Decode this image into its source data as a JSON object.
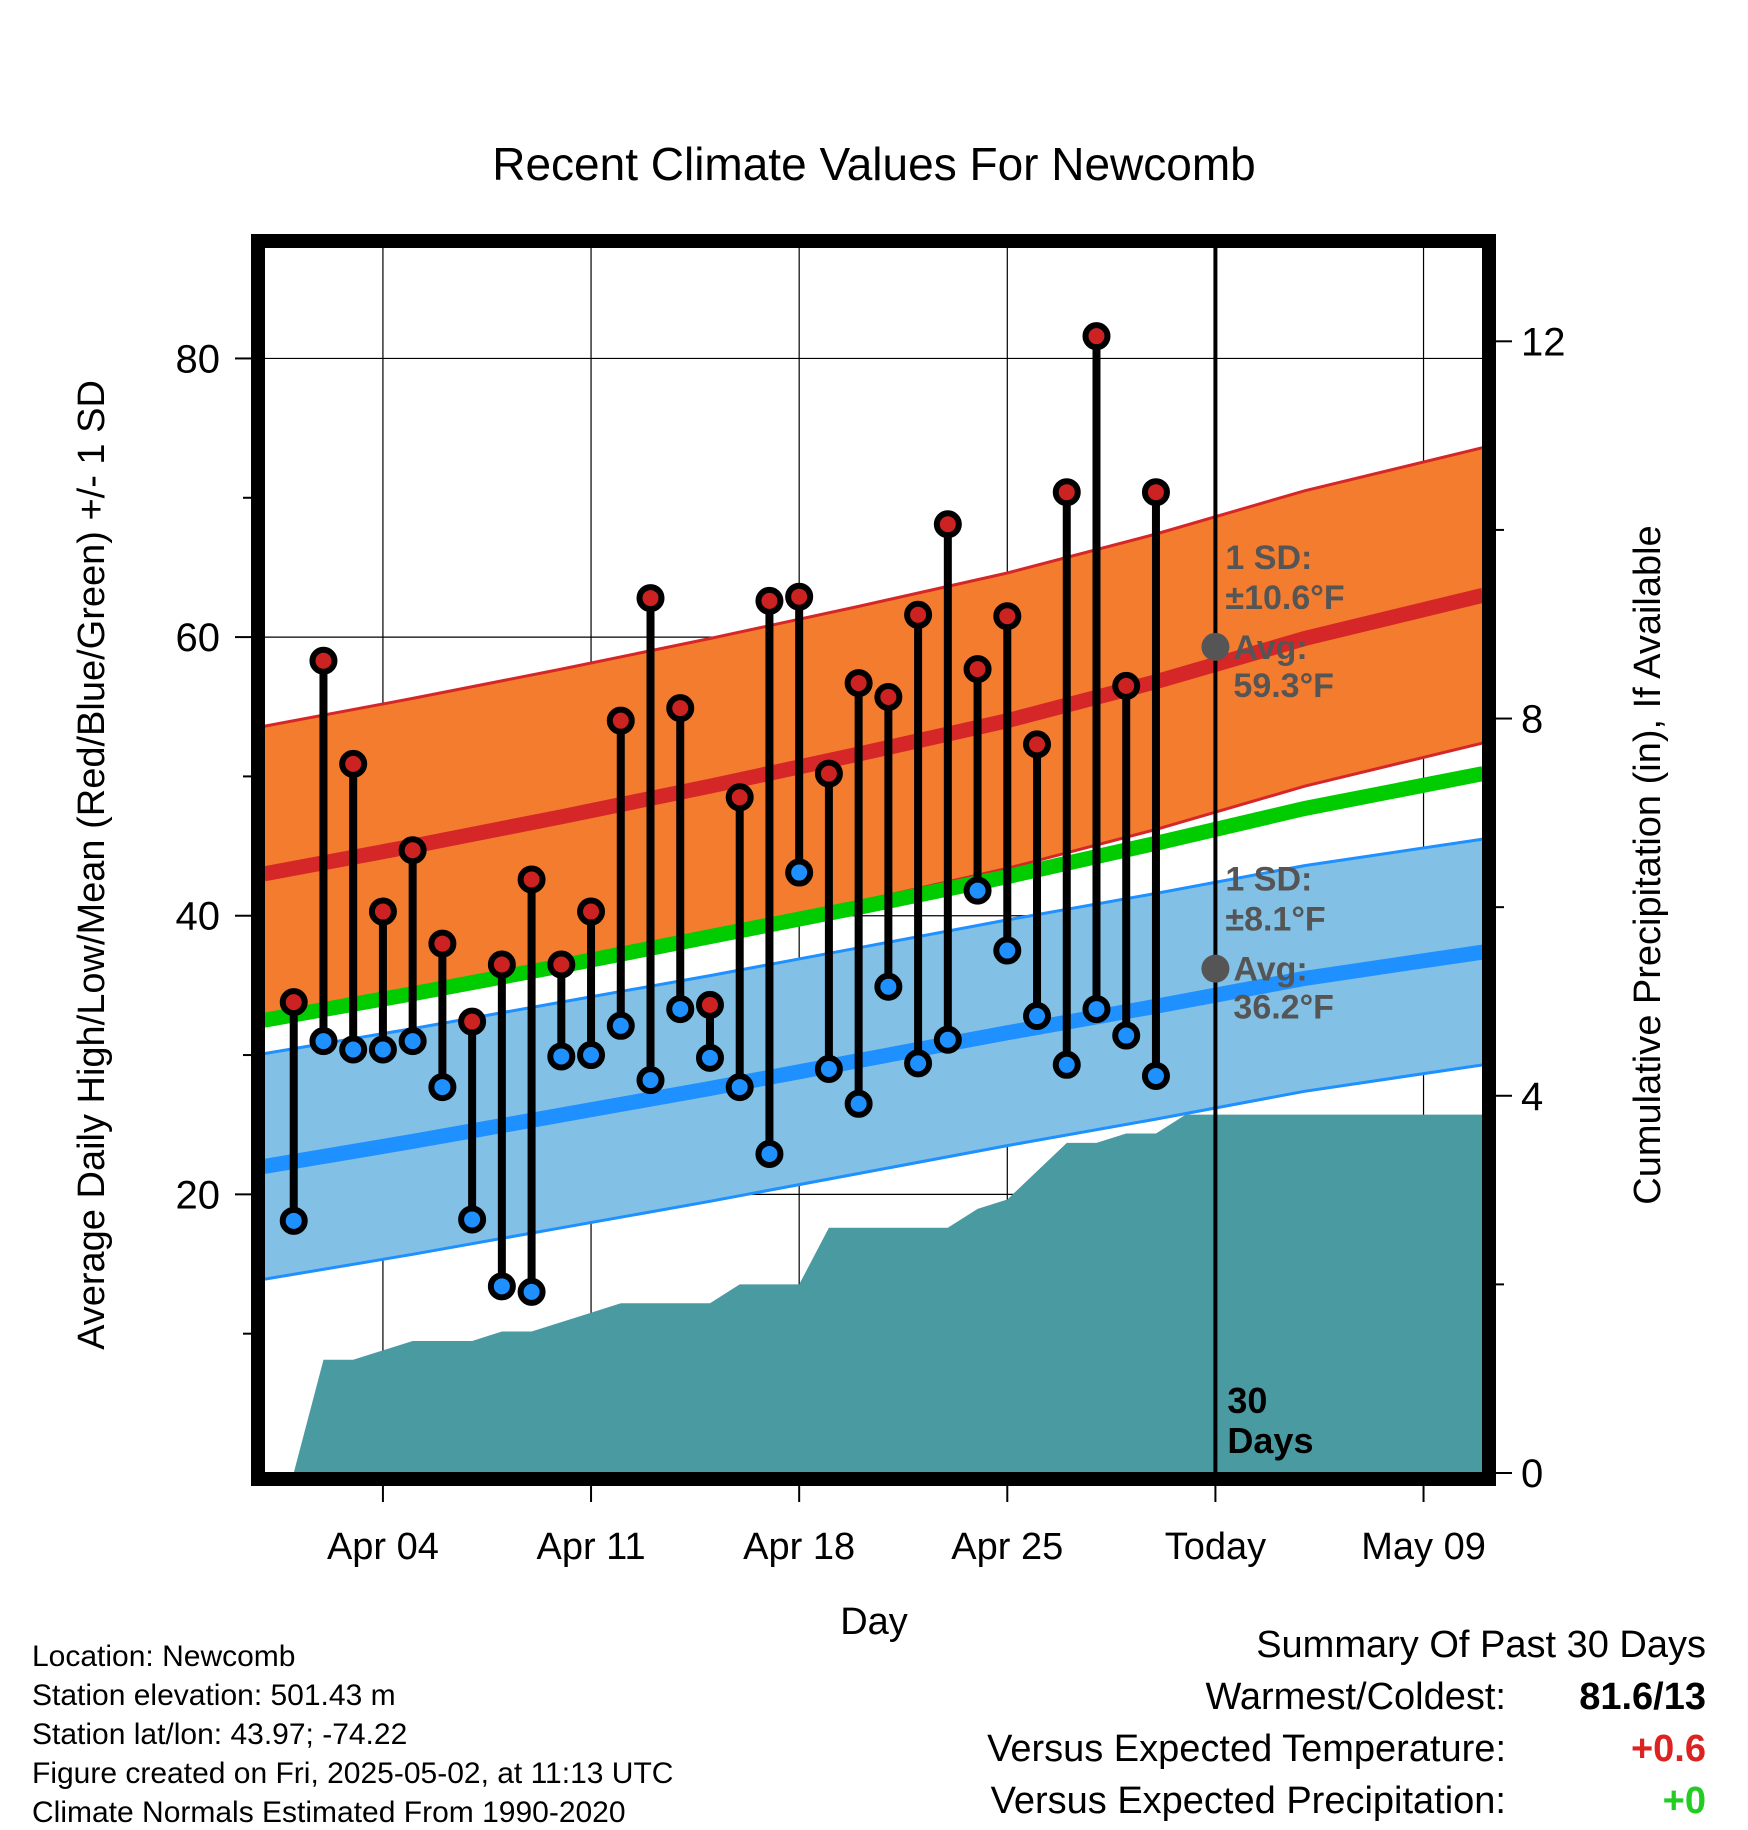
{
  "chart_data": {
    "type": "line",
    "title": "Recent Climate Values For Newcomb",
    "xlabel": "Day",
    "ylabel": "Average Daily High/Low/Mean (Red/Blue/Green) +/- 1 SD",
    "y2label": "Cumulative Precipitation (in), If Available",
    "x_range": [
      "2025-03-31",
      "2025-05-11"
    ],
    "ylim": [
      0,
      88
    ],
    "y_ticks": [
      20,
      40,
      60,
      80
    ],
    "y2lim": [
      0,
      13
    ],
    "y2_ticks": [
      0,
      4,
      8,
      12
    ],
    "x_ticks": [
      {
        "date": "2025-04-04",
        "label": "Apr 04"
      },
      {
        "date": "2025-04-11",
        "label": "Apr 11"
      },
      {
        "date": "2025-04-18",
        "label": "Apr 18"
      },
      {
        "date": "2025-04-25",
        "label": "Apr 25"
      },
      {
        "date": "2025-05-02",
        "label": "Today"
      },
      {
        "date": "2025-05-09",
        "label": "May 09"
      }
    ],
    "grid": true,
    "today_label": "Today",
    "days_label": [
      "30",
      "Days"
    ],
    "colors": {
      "high_band": "#f47c2f",
      "high_line": "#d62728",
      "low_band": "#82c0e6",
      "low_line": "#1e90ff",
      "mean_line": "#00cc00",
      "precip": "#4a9aa2",
      "high_marker": "#cc2222",
      "low_marker": "#1e90ff"
    },
    "normal_high": {
      "dates": [
        "2025-03-31",
        "2025-04-05",
        "2025-04-10",
        "2025-04-15",
        "2025-04-20",
        "2025-04-25",
        "2025-04-30",
        "2025-05-05",
        "2025-05-11"
      ],
      "mean": [
        43.0,
        45.0,
        47.1,
        49.3,
        51.6,
        54.0,
        56.8,
        59.9,
        63.0
      ],
      "upper": [
        53.6,
        55.6,
        57.7,
        59.9,
        62.2,
        64.6,
        67.4,
        70.5,
        73.6
      ],
      "lower": [
        32.4,
        34.4,
        36.5,
        38.7,
        41.0,
        43.4,
        46.2,
        49.3,
        52.4
      ]
    },
    "normal_low": {
      "dates": [
        "2025-03-31",
        "2025-04-05",
        "2025-04-10",
        "2025-04-15",
        "2025-04-20",
        "2025-04-25",
        "2025-04-30",
        "2025-05-05",
        "2025-05-11"
      ],
      "mean": [
        22.0,
        23.8,
        25.7,
        27.6,
        29.6,
        31.6,
        33.5,
        35.5,
        37.4
      ],
      "upper": [
        30.1,
        31.9,
        33.8,
        35.7,
        37.7,
        39.7,
        41.6,
        43.6,
        45.5
      ],
      "lower": [
        13.9,
        15.7,
        17.6,
        19.5,
        21.5,
        23.5,
        25.4,
        27.4,
        29.3
      ]
    },
    "normal_mean": {
      "dates": [
        "2025-03-31",
        "2025-04-05",
        "2025-04-10",
        "2025-04-15",
        "2025-04-20",
        "2025-04-25",
        "2025-04-30",
        "2025-05-05",
        "2025-05-11"
      ],
      "values": [
        32.5,
        34.4,
        36.4,
        38.5,
        40.6,
        42.8,
        45.2,
        47.7,
        50.2
      ]
    },
    "today_normals": {
      "high_avg": 59.3,
      "high_sd_label": [
        "1 SD:",
        "±10.6°F",
        "Avg:",
        "59.3°F"
      ],
      "low_avg": 36.2,
      "low_sd_label": [
        "1 SD:",
        "±8.1°F",
        "Avg:",
        "36.2°F"
      ]
    },
    "observed": {
      "dates": [
        "2025-04-01",
        "2025-04-02",
        "2025-04-03",
        "2025-04-04",
        "2025-04-05",
        "2025-04-06",
        "2025-04-07",
        "2025-04-08",
        "2025-04-09",
        "2025-04-10",
        "2025-04-11",
        "2025-04-12",
        "2025-04-13",
        "2025-04-14",
        "2025-04-15",
        "2025-04-16",
        "2025-04-17",
        "2025-04-18",
        "2025-04-19",
        "2025-04-20",
        "2025-04-21",
        "2025-04-22",
        "2025-04-23",
        "2025-04-24",
        "2025-04-25",
        "2025-04-26",
        "2025-04-27",
        "2025-04-28",
        "2025-04-29",
        "2025-04-30",
        "2025-05-01"
      ],
      "high": [
        33.8,
        58.3,
        50.9,
        40.3,
        44.7,
        38.0,
        32.4,
        36.5,
        42.6,
        36.5,
        40.3,
        54.0,
        62.8,
        54.9,
        33.6,
        48.5,
        62.6,
        62.9,
        50.2,
        56.7,
        55.7,
        61.6,
        68.1,
        57.7,
        61.5,
        52.3,
        70.4,
        81.6,
        56.5,
        70.4,
        null
      ],
      "low": [
        18.1,
        31.0,
        30.4,
        30.4,
        31.0,
        27.7,
        18.2,
        13.4,
        13.0,
        29.9,
        30.0,
        32.1,
        28.2,
        33.3,
        29.8,
        27.7,
        22.9,
        43.1,
        29.0,
        26.5,
        34.9,
        29.4,
        31.1,
        41.8,
        37.5,
        32.8,
        29.3,
        33.3,
        31.4,
        28.5,
        null
      ]
    },
    "precip_cumulative": {
      "dates": [
        "2025-03-31",
        "2025-04-01",
        "2025-04-02",
        "2025-04-03",
        "2025-04-04",
        "2025-04-05",
        "2025-04-06",
        "2025-04-07",
        "2025-04-08",
        "2025-04-09",
        "2025-04-10",
        "2025-04-11",
        "2025-04-12",
        "2025-04-13",
        "2025-04-14",
        "2025-04-15",
        "2025-04-16",
        "2025-04-17",
        "2025-04-18",
        "2025-04-19",
        "2025-04-20",
        "2025-04-21",
        "2025-04-22",
        "2025-04-23",
        "2025-04-24",
        "2025-04-25",
        "2025-04-26",
        "2025-04-27",
        "2025-04-28",
        "2025-04-29",
        "2025-04-30",
        "2025-05-01",
        "2025-05-02",
        "2025-05-11"
      ],
      "values": [
        0,
        0,
        1.2,
        1.2,
        1.3,
        1.4,
        1.4,
        1.4,
        1.5,
        1.5,
        1.6,
        1.7,
        1.8,
        1.8,
        1.8,
        1.8,
        2.0,
        2.0,
        2.0,
        2.6,
        2.6,
        2.6,
        2.6,
        2.6,
        2.8,
        2.9,
        3.2,
        3.5,
        3.5,
        3.6,
        3.6,
        3.8,
        3.8,
        3.8
      ]
    }
  },
  "info": {
    "location": "Location: Newcomb",
    "elevation": "Station elevation: 501.43 m",
    "latlon": "Station lat/lon: 43.97; -74.22",
    "created": "Figure created on Fri, 2025-05-02, at 11:13 UTC",
    "normals": "Climate Normals Estimated From 1990-2020"
  },
  "summary": {
    "title": "Summary Of Past 30 Days",
    "warmest_label": "Warmest/Coldest:",
    "warmest_value": "81.6/13",
    "temp_label": "Versus Expected Temperature:",
    "temp_value": "+0.6",
    "temp_color": "#dd2222",
    "precip_label": "Versus Expected Precipitation:",
    "precip_value": "+0",
    "precip_color": "#22cc22"
  }
}
